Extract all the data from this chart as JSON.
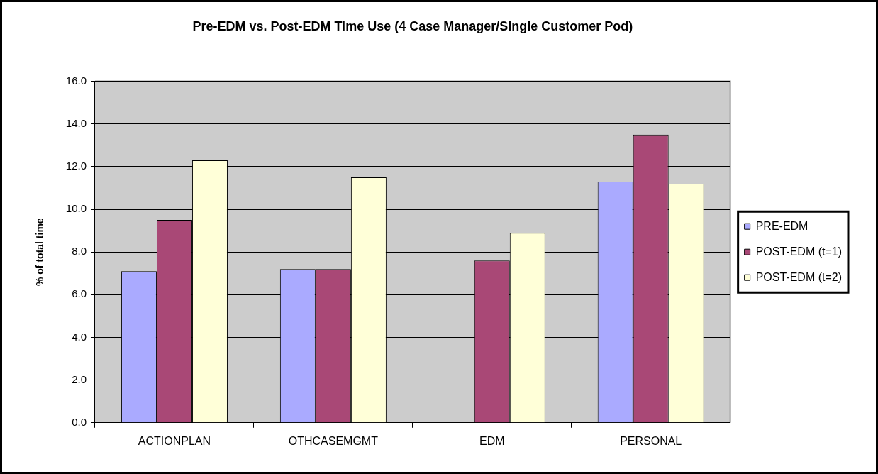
{
  "chart_data": {
    "type": "bar",
    "title": "Pre-EDM vs. Post-EDM Time Use (4 Case Manager/Single Customer Pod)",
    "ylabel": "% of total time",
    "categories": [
      "ACTIONPLAN",
      "OTHCASEMGMT",
      "EDM",
      "PERSONAL"
    ],
    "series": [
      {
        "name": "PRE-EDM",
        "color": "#aaaaff",
        "values": [
          7.1,
          7.2,
          null,
          11.3
        ]
      },
      {
        "name": "POST-EDM (t=1)",
        "color": "#a94876",
        "values": [
          9.5,
          7.2,
          7.6,
          13.5
        ]
      },
      {
        "name": "POST-EDM (t=2)",
        "color": "#ffffd8",
        "values": [
          12.3,
          11.5,
          8.9,
          11.2
        ]
      }
    ],
    "ylim": [
      0,
      16
    ],
    "yticks": [
      {
        "value": 0,
        "label": "0.0"
      },
      {
        "value": 2,
        "label": "2.0"
      },
      {
        "value": 4,
        "label": "4.0"
      },
      {
        "value": 6,
        "label": "6.0"
      },
      {
        "value": 8,
        "label": "8.0"
      },
      {
        "value": 10,
        "label": "10.0"
      },
      {
        "value": 12,
        "label": "12.0"
      },
      {
        "value": 14,
        "label": "14.0"
      },
      {
        "value": 16,
        "label": "16.0"
      }
    ],
    "grid": "y",
    "legend": "right"
  }
}
